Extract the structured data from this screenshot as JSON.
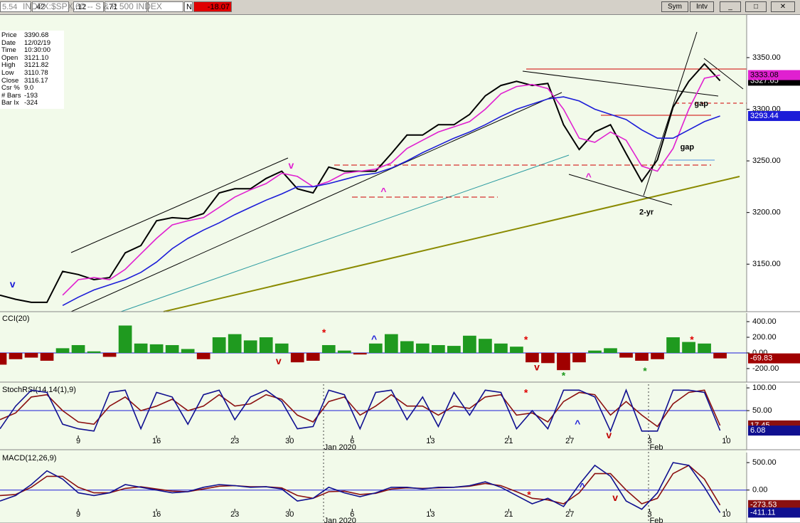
{
  "toolbar": {
    "fields": [
      "5.54",
      ".42",
      ".12",
      ".71"
    ],
    "symbol": "INDEX:$SPX,60 -- S & P 500 INDEX",
    "flag": "N",
    "change": "-18.07",
    "buttons": [
      "Sym",
      "Intv"
    ]
  },
  "info": {
    "rows": [
      [
        "Price",
        "3390.68"
      ],
      [
        "Date",
        "12/02/19"
      ],
      [
        "Time",
        "10:30:00"
      ],
      [
        "Open",
        "3121.10"
      ],
      [
        "High",
        "3121.82"
      ],
      [
        "Low",
        "3110.78"
      ],
      [
        "Close",
        "3116.17"
      ],
      [
        "Csr %",
        "9.0"
      ],
      [
        "# Bars",
        "-193"
      ],
      [
        "Bar Ix",
        "-324"
      ]
    ]
  },
  "chart_data": [
    {
      "type": "line",
      "xlim": [
        0,
        47.7
      ],
      "ylim": [
        3104,
        3392
      ],
      "yticks": [
        {
          "value": 3150,
          "label": "3150.00"
        },
        {
          "value": 3200,
          "label": "3200.00"
        },
        {
          "value": 3250,
          "label": "3250.00"
        },
        {
          "value": 3300,
          "label": "3300.00"
        },
        {
          "value": 3350,
          "label": "3350.00"
        }
      ],
      "x": [
        0,
        1,
        2,
        3,
        4,
        5,
        6,
        7,
        8,
        9,
        10,
        11,
        12,
        13,
        14,
        15,
        16,
        17,
        18,
        19,
        20,
        21,
        22,
        23,
        24,
        25,
        26,
        27,
        28,
        29,
        30,
        31,
        32,
        33,
        34,
        35,
        36,
        37,
        38,
        39,
        40,
        41,
        42,
        43,
        44,
        45,
        46
      ],
      "series": [
        {
          "name": "Price",
          "color": "#000000",
          "values": [
            3120,
            3116,
            3113,
            3113,
            3143,
            3140,
            3135,
            3137,
            3161,
            3168,
            3192,
            3195,
            3194,
            3199,
            3219,
            3223,
            3223,
            3233,
            3240,
            3223,
            3219,
            3244,
            3240,
            3240,
            3240,
            3257,
            3275,
            3275,
            3285,
            3285,
            3295,
            3313,
            3323,
            3327,
            3323,
            3325,
            3285,
            3261,
            3278,
            3285,
            3257,
            3230,
            3251,
            3302,
            3327,
            3344,
            3327.65
          ]
        },
        {
          "name": "MA short",
          "color": "#e020d0",
          "values": [
            null,
            null,
            null,
            null,
            3120,
            3135,
            3137,
            3135,
            3145,
            3160,
            3175,
            3188,
            3192,
            3195,
            3205,
            3215,
            3222,
            3228,
            3238,
            3235,
            3225,
            3230,
            3238,
            3240,
            3242,
            3248,
            3262,
            3270,
            3278,
            3283,
            3288,
            3300,
            3315,
            3322,
            3324,
            3320,
            3300,
            3272,
            3268,
            3278,
            3270,
            3245,
            3240,
            3262,
            3300,
            3330,
            3333.08
          ]
        },
        {
          "name": "MA long",
          "color": "#1c1cd8",
          "values": [
            null,
            null,
            null,
            null,
            3110,
            3118,
            3125,
            3130,
            3135,
            3142,
            3152,
            3165,
            3175,
            3183,
            3190,
            3198,
            3205,
            3212,
            3218,
            3225,
            3225,
            3228,
            3232,
            3236,
            3238,
            3243,
            3250,
            3258,
            3265,
            3272,
            3278,
            3285,
            3293,
            3300,
            3305,
            3310,
            3312,
            3308,
            3300,
            3295,
            3290,
            3280,
            3272,
            3272,
            3280,
            3288,
            3293.44
          ]
        }
      ],
      "annotations": [
        {
          "text": "gap",
          "x": 44.8,
          "y": 3305,
          "color": "#000000"
        },
        {
          "text": "gap",
          "x": 43.9,
          "y": 3263,
          "color": "#000000"
        },
        {
          "text": "2-yr",
          "x": 41.3,
          "y": 3200,
          "color": "#000000"
        },
        {
          "text": "^",
          "x": 24.5,
          "y": 3220,
          "color": "#e020d0"
        },
        {
          "text": "v",
          "x": 18.6,
          "y": 3245,
          "color": "#e020d0"
        },
        {
          "text": "^",
          "x": 37.6,
          "y": 3234,
          "color": "#e020d0"
        },
        {
          "text": "v",
          "x": 0.8,
          "y": 3130,
          "color": "#1c1cd8"
        }
      ]
    },
    {
      "type": "bar",
      "title": "CCI(20)",
      "xlim": [
        0,
        47.7
      ],
      "ylim": [
        -373,
        509
      ],
      "positive_color": "#1f9a1f",
      "negative_color": "#a00000",
      "ref_line": 0,
      "yticks": [
        {
          "value": -200,
          "label": "-200.00"
        },
        {
          "value": 0,
          "label": "0.00"
        },
        {
          "value": 200,
          "label": "200.00"
        },
        {
          "value": 400,
          "label": "400.00"
        }
      ],
      "x": [
        0,
        1,
        2,
        3,
        4,
        5,
        6,
        7,
        8,
        9,
        10,
        11,
        12,
        13,
        14,
        15,
        16,
        17,
        18,
        19,
        20,
        21,
        22,
        23,
        24,
        25,
        26,
        27,
        28,
        29,
        30,
        31,
        32,
        33,
        34,
        35,
        36,
        37,
        38,
        39,
        40,
        41,
        42,
        43,
        44,
        45,
        46
      ],
      "values": [
        -150,
        -80,
        -60,
        -100,
        60,
        100,
        20,
        -50,
        350,
        120,
        110,
        100,
        50,
        -80,
        200,
        240,
        160,
        200,
        120,
        -120,
        -100,
        100,
        30,
        -20,
        120,
        240,
        150,
        120,
        100,
        90,
        220,
        180,
        120,
        80,
        -120,
        -130,
        -220,
        -120,
        30,
        60,
        -60,
        -100,
        -80,
        200,
        140,
        120,
        -69.83
      ],
      "annotations": [
        {
          "text": "*",
          "x": 20.7,
          "y": 250,
          "color": "#e00000"
        },
        {
          "text": "^",
          "x": 23.9,
          "y": 170,
          "color": "#1c1cd8"
        },
        {
          "text": "v",
          "x": 17.8,
          "y": -110,
          "color": "#c00000"
        },
        {
          "text": "v",
          "x": 34.3,
          "y": -190,
          "color": "#c00000"
        },
        {
          "text": "*",
          "x": 33.6,
          "y": 160,
          "color": "#e00000"
        },
        {
          "text": "*",
          "x": 44.2,
          "y": 160,
          "color": "#e00000"
        },
        {
          "text": "*",
          "x": 36.0,
          "y": -300,
          "color": "#1f9a1f"
        },
        {
          "text": "*",
          "x": 41.2,
          "y": -240,
          "color": "#1f9a1f"
        }
      ]
    },
    {
      "type": "line",
      "title": "StochRSI(14,14(1),9)",
      "xlim": [
        0,
        47.7
      ],
      "ylim": [
        -36,
        108
      ],
      "ref_line": 50,
      "yticks": [
        {
          "value": 50,
          "label": "50.00"
        },
        {
          "value": 100,
          "label": "100.00"
        }
      ],
      "xticks": [
        {
          "value": 5,
          "label": "9"
        },
        {
          "value": 10,
          "label": "16"
        },
        {
          "value": 15,
          "label": "23"
        },
        {
          "value": 18.5,
          "label": "30"
        },
        {
          "value": 22.5,
          "label": "6"
        },
        {
          "value": 27.5,
          "label": "13"
        },
        {
          "value": 32.5,
          "label": "21"
        },
        {
          "value": 36.4,
          "label": "27"
        },
        {
          "value": 41.5,
          "label": "3"
        },
        {
          "value": 46.4,
          "label": "10"
        }
      ],
      "month_ticks": [
        {
          "value": 20.7,
          "label": "Jan 2020"
        },
        {
          "value": 41.5,
          "label": "Feb"
        }
      ],
      "x": [
        0,
        1,
        2,
        3,
        4,
        5,
        6,
        7,
        8,
        9,
        10,
        11,
        12,
        13,
        14,
        15,
        16,
        17,
        18,
        19,
        20,
        21,
        22,
        23,
        24,
        25,
        26,
        27,
        28,
        29,
        30,
        31,
        32,
        33,
        34,
        35,
        36,
        37,
        38,
        39,
        40,
        41,
        42,
        43,
        44,
        45,
        46
      ],
      "series": [
        {
          "name": "%K",
          "color": "#8b1010",
          "values": [
            30,
            45,
            80,
            85,
            50,
            25,
            20,
            60,
            80,
            50,
            60,
            75,
            50,
            60,
            85,
            60,
            65,
            85,
            75,
            40,
            25,
            70,
            80,
            40,
            60,
            85,
            60,
            60,
            40,
            60,
            55,
            80,
            85,
            40,
            45,
            25,
            70,
            90,
            85,
            40,
            70,
            40,
            15,
            65,
            90,
            95,
            17.45
          ]
        },
        {
          "name": "StochRSI",
          "color": "#101090",
          "values": [
            10,
            60,
            95,
            90,
            20,
            10,
            5,
            90,
            95,
            10,
            90,
            80,
            20,
            85,
            95,
            30,
            80,
            95,
            70,
            10,
            15,
            95,
            85,
            10,
            90,
            95,
            30,
            80,
            15,
            90,
            40,
            95,
            90,
            10,
            50,
            10,
            95,
            95,
            80,
            5,
            95,
            5,
            5,
            95,
            95,
            90,
            6.08
          ]
        }
      ],
      "annotations": [
        {
          "text": "*",
          "x": 33.6,
          "y": 88,
          "color": "#e00000"
        },
        {
          "text": "^",
          "x": 36.9,
          "y": 20,
          "color": "#1c1cd8"
        },
        {
          "text": "v",
          "x": 38.9,
          "y": -5,
          "color": "#c00000"
        }
      ]
    },
    {
      "type": "line",
      "title": "MACD(12,26,9)",
      "xlim": [
        0,
        47.7
      ],
      "ylim": [
        -600,
        683
      ],
      "ref_line": 0,
      "yticks": [
        {
          "value": 0,
          "label": "0.00"
        },
        {
          "value": 500,
          "label": "500.00"
        }
      ],
      "xticks": [
        {
          "value": 5,
          "label": "9"
        },
        {
          "value": 10,
          "label": "16"
        },
        {
          "value": 15,
          "label": "23"
        },
        {
          "value": 18.5,
          "label": "30"
        },
        {
          "value": 22.5,
          "label": "6"
        },
        {
          "value": 27.5,
          "label": "13"
        },
        {
          "value": 32.5,
          "label": "21"
        },
        {
          "value": 36.4,
          "label": "27"
        },
        {
          "value": 41.5,
          "label": "3"
        },
        {
          "value": 46.4,
          "label": "10"
        }
      ],
      "month_ticks": [
        {
          "value": 20.7,
          "label": "Jan 2020"
        },
        {
          "value": 41.5,
          "label": "Feb"
        }
      ],
      "x": [
        0,
        1,
        2,
        3,
        4,
        5,
        6,
        7,
        8,
        9,
        10,
        11,
        12,
        13,
        14,
        15,
        16,
        17,
        18,
        19,
        20,
        21,
        22,
        23,
        24,
        25,
        26,
        27,
        28,
        29,
        30,
        31,
        32,
        33,
        34,
        35,
        36,
        37,
        38,
        39,
        40,
        41,
        42,
        43,
        44,
        45,
        46
      ],
      "series": [
        {
          "name": "Signal",
          "color": "#8b1010",
          "values": [
            -100,
            -80,
            50,
            250,
            250,
            50,
            -50,
            -50,
            30,
            60,
            20,
            -20,
            -30,
            20,
            70,
            80,
            60,
            60,
            40,
            -100,
            -150,
            -30,
            -20,
            -80,
            -60,
            20,
            40,
            30,
            40,
            50,
            70,
            120,
            80,
            -30,
            -150,
            -180,
            -250,
            -50,
            300,
            300,
            0,
            -250,
            -150,
            300,
            450,
            200,
            -273.53
          ]
        },
        {
          "name": "MACD",
          "color": "#101090",
          "values": [
            -200,
            -100,
            100,
            350,
            200,
            -50,
            -100,
            -50,
            100,
            50,
            0,
            -50,
            -30,
            50,
            100,
            80,
            50,
            60,
            20,
            -200,
            -150,
            50,
            -50,
            -120,
            -50,
            50,
            50,
            20,
            50,
            50,
            80,
            150,
            50,
            -100,
            -250,
            -150,
            -300,
            100,
            450,
            250,
            -200,
            -350,
            -50,
            500,
            450,
            50,
            -411.11
          ]
        }
      ],
      "annotations": [
        {
          "text": "*",
          "x": 33.8,
          "y": -100,
          "color": "#e00000"
        },
        {
          "text": "^",
          "x": 37.2,
          "y": 50,
          "color": "#1c1cd8"
        },
        {
          "text": "v",
          "x": 39.3,
          "y": -150,
          "color": "#c00000"
        }
      ]
    }
  ]
}
